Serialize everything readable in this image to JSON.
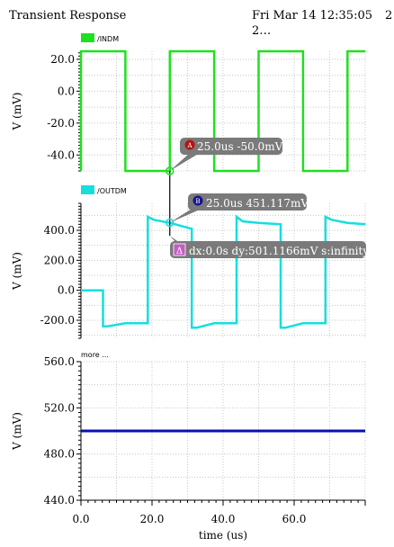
{
  "header": {
    "title": "Transient Response",
    "datetime": "Fri Mar 14 12:35:05",
    "datetime_cont": "2…",
    "page_num": "2"
  },
  "colors": {
    "indm": "#1fe01f",
    "outdm": "#16dede",
    "third": "#0a0fb0",
    "marker_a": "#b51414",
    "marker_b": "#14148f",
    "delta": "#c060c0",
    "tooltip_bg": "#7a7a7a"
  },
  "chart_data": [
    {
      "type": "line",
      "legend": "/INDM",
      "ylabel": "V (mV)",
      "ylim": [
        -50,
        25
      ],
      "yticks": [
        "20.0",
        "0.0",
        "-20.0",
        "-40.0"
      ],
      "ytick_values": [
        20,
        0,
        -20,
        -40
      ],
      "series": [
        {
          "name": "/INDM",
          "x": [
            0,
            0,
            12.5,
            12.5,
            25,
            25,
            37.5,
            37.5,
            50,
            50,
            62.5,
            62.5,
            75,
            75,
            80
          ],
          "y": [
            -50,
            25,
            25,
            -50,
            -50,
            25,
            25,
            -50,
            -50,
            25,
            25,
            -50,
            -50,
            25,
            25
          ]
        }
      ],
      "marker": {
        "letter": "A",
        "label": "25.0us -50.0mV",
        "x": 25,
        "y": -50
      }
    },
    {
      "type": "line",
      "legend": "/OUTDM",
      "ylabel": "V (mV)",
      "ylim": [
        -320,
        580
      ],
      "yticks": [
        "400.0",
        "200.0",
        "0.0",
        "-200.0"
      ],
      "ytick_values": [
        400,
        200,
        0,
        -200
      ],
      "series": [
        {
          "name": "/OUTDM",
          "x": [
            0,
            6.2,
            6.2,
            7.5,
            12.5,
            18.8,
            18.8,
            20.5,
            25,
            31.2,
            31.2,
            32.5,
            37.5,
            43.8,
            43.8,
            45.5,
            50,
            56.2,
            56.2,
            57.5,
            62.5,
            68.8,
            68.8,
            70.5,
            75,
            80
          ],
          "y": [
            0,
            0,
            -240,
            -240,
            -220,
            -220,
            490,
            470,
            450,
            410,
            -250,
            -250,
            -220,
            -220,
            490,
            460,
            450,
            440,
            -250,
            -250,
            -220,
            -220,
            490,
            470,
            450,
            440
          ]
        }
      ],
      "marker": {
        "letter": "B",
        "label": "25.0us 451.117mV",
        "x": 25,
        "y": 451.117
      },
      "delta": {
        "symbol": "Δ",
        "label": "dx:0.0s dy:501.1166mV s:infinity"
      }
    },
    {
      "type": "line",
      "legend": "more ...",
      "ylabel": "V (mV)",
      "ylim": [
        440,
        560
      ],
      "yticks": [
        "560.0",
        "520.0",
        "480.0",
        "440.0"
      ],
      "ytick_values": [
        560,
        520,
        480,
        440
      ],
      "series": [
        {
          "name": "more ...",
          "x": [
            0,
            80
          ],
          "y": [
            500,
            500
          ]
        }
      ],
      "xlabel": "time (us)",
      "xlim": [
        0,
        80
      ],
      "xticks": [
        "0.0",
        "20.0",
        "40.0",
        "60.0"
      ],
      "xtick_values": [
        0,
        20,
        40,
        60
      ]
    }
  ]
}
